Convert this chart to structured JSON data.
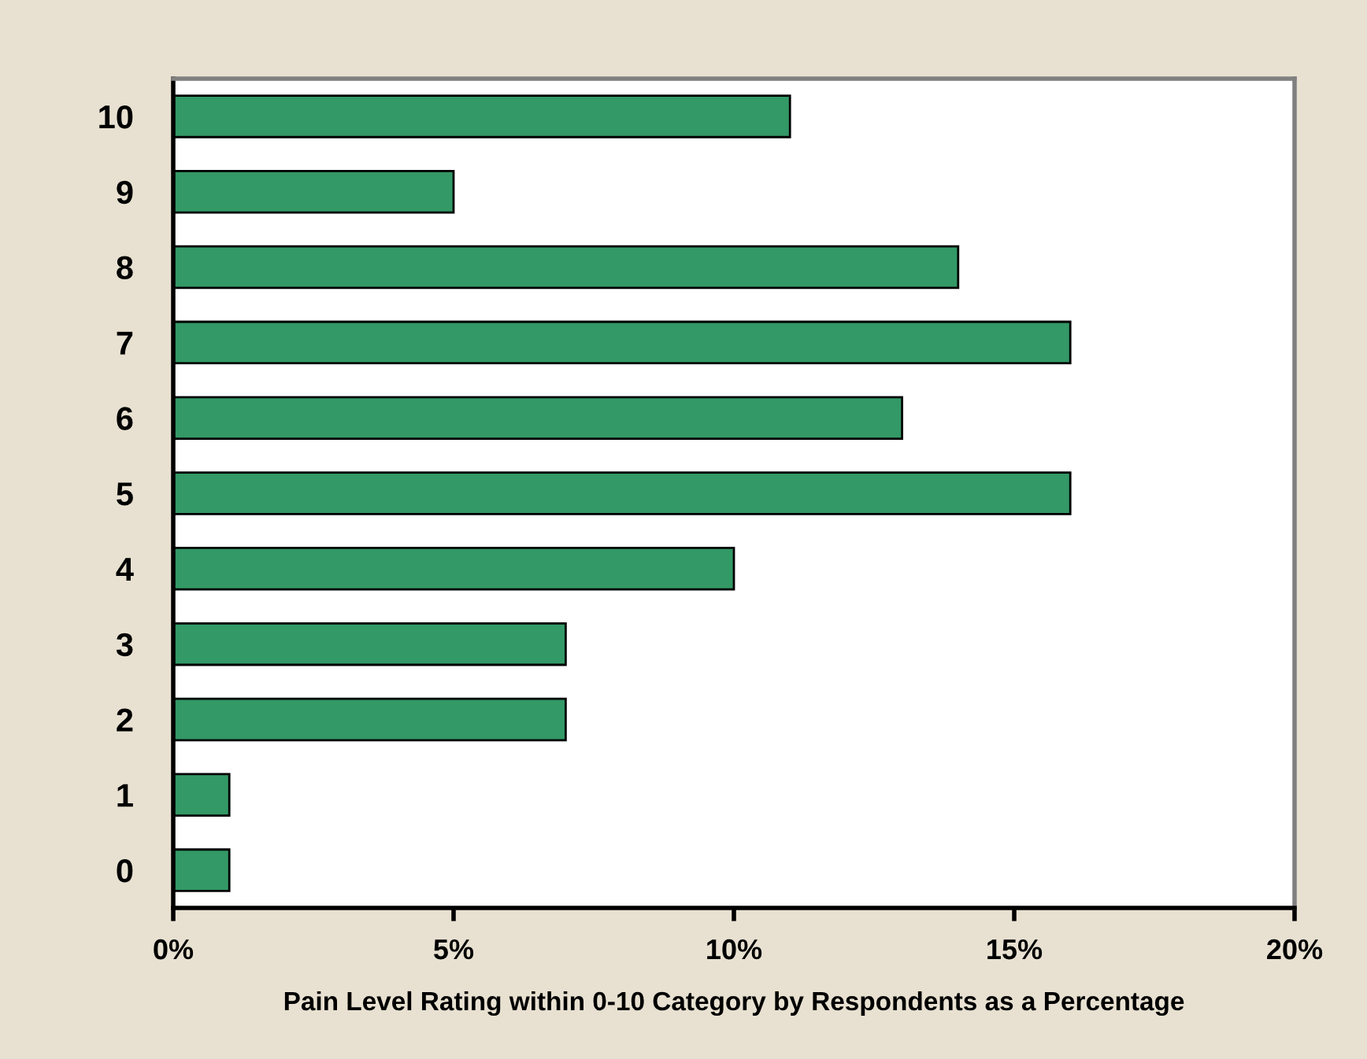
{
  "chart_data": {
    "type": "bar",
    "orientation": "horizontal",
    "categories": [
      "10",
      "9",
      "8",
      "7",
      "6",
      "5",
      "4",
      "3",
      "2",
      "1",
      "0"
    ],
    "values": [
      11,
      5,
      14,
      16,
      13,
      16,
      10,
      7,
      7,
      1,
      1
    ],
    "color": "#339966",
    "xlim": [
      0,
      20
    ],
    "xticks": [
      {
        "value": 0,
        "label": "0%"
      },
      {
        "value": 5,
        "label": "5%"
      },
      {
        "value": 10,
        "label": "10%"
      },
      {
        "value": 15,
        "label": "15%"
      },
      {
        "value": 20,
        "label": "20%"
      }
    ],
    "xlabel": "Pain Level Rating within 0-10 Category by Respondents as a Percentage",
    "grid": false,
    "legend": false
  }
}
